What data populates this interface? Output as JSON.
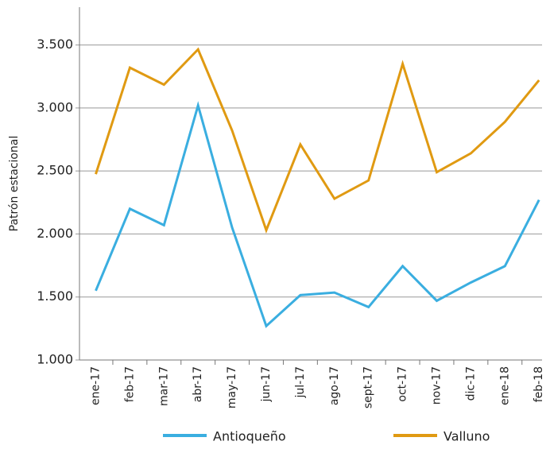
{
  "chart_data": {
    "type": "line",
    "y_label": "Patrón estacional",
    "categories": [
      "ene-17",
      "feb-17",
      "mar-17",
      "abr-17",
      "may-17",
      "jun-17",
      "jul-17",
      "ago-17",
      "sept-17",
      "oct-17",
      "nov-17",
      "dic-17",
      "ene-18",
      "feb-18"
    ],
    "series": [
      {
        "name": "Antioqueño",
        "color": "#3aaee0",
        "values": [
          1550,
          2200,
          2070,
          3020,
          2050,
          1270,
          1515,
          1535,
          1420,
          1745,
          1470,
          1615,
          1745,
          2270
        ]
      },
      {
        "name": "Valluno",
        "color": "#e09a12",
        "values": [
          2475,
          3320,
          3185,
          3465,
          2820,
          2030,
          2710,
          2280,
          2425,
          3350,
          2490,
          2640,
          2890,
          3220
        ]
      }
    ],
    "ylim": [
      1000,
      3800
    ],
    "yticks": [
      {
        "value": 1000,
        "label": "1.000"
      },
      {
        "value": 1500,
        "label": "1.500"
      },
      {
        "value": 2000,
        "label": "2.000"
      },
      {
        "value": 2500,
        "label": "2.500"
      },
      {
        "value": 3000,
        "label": "3.000"
      },
      {
        "value": 3500,
        "label": "3.500"
      }
    ],
    "grid": true,
    "legend": "bottom"
  }
}
